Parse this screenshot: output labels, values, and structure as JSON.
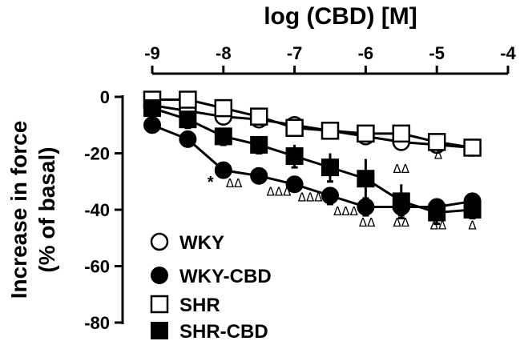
{
  "chart_data": {
    "type": "line",
    "title": "",
    "xlabel": "log (CBD) [M]",
    "ylabel_line1": "Increase in force",
    "ylabel_line2": "(% of basal)",
    "xlim": [
      -9,
      -4
    ],
    "ylim": [
      -80,
      0
    ],
    "x_ticks": [
      -9,
      -8,
      -7,
      -6,
      -5,
      -4
    ],
    "x_tick_labels": [
      "-9",
      "-8",
      "-7",
      "-6",
      "-5",
      "-4"
    ],
    "y_ticks": [
      0,
      -20,
      -40,
      -60,
      -80
    ],
    "y_tick_labels": [
      "0",
      "-20",
      "-40",
      "-60",
      "-80"
    ],
    "x_axis_position": "top",
    "grid": false,
    "legend_position": "bottom-left",
    "x": [
      -9,
      -8.5,
      -8,
      -7.5,
      -7,
      -6.5,
      -6,
      -5.5,
      -5,
      -4.5
    ],
    "series": [
      {
        "name": "WKY",
        "marker": "circle-open",
        "values": [
          -3,
          -5,
          -7,
          -8,
          -10,
          -12,
          -14,
          -16,
          -17,
          -18
        ],
        "errors": [
          0,
          0,
          0,
          0,
          0,
          0,
          0,
          0,
          0,
          0
        ]
      },
      {
        "name": "WKY-CBD",
        "marker": "circle-filled",
        "values": [
          -10,
          -15,
          -26,
          -28,
          -31,
          -35,
          -39,
          -39,
          -39,
          -37
        ],
        "errors": [
          2,
          2,
          2,
          2,
          2,
          3,
          3,
          3,
          3,
          3
        ]
      },
      {
        "name": "SHR",
        "marker": "square-open",
        "values": [
          -1,
          -1,
          -4,
          -7,
          -11,
          -12,
          -13,
          -13,
          -16,
          -18
        ],
        "errors": [
          0,
          0,
          0,
          0,
          0,
          0,
          0,
          0,
          0,
          0
        ]
      },
      {
        "name": "SHR-CBD",
        "marker": "square-filled",
        "values": [
          -4,
          -8,
          -14,
          -17,
          -21,
          -25,
          -29,
          -37,
          -41,
          -40
        ],
        "errors": [
          2,
          3,
          3,
          3,
          4,
          5,
          7,
          6,
          4,
          3
        ]
      }
    ],
    "annotations": [
      {
        "text": "*",
        "x": -8.18,
        "y": -32,
        "kind": "star"
      },
      {
        "text": "ΔΔ",
        "x": -7.85,
        "y": -32,
        "kind": "triangle"
      },
      {
        "text": "ΔΔΔ",
        "x": -7.22,
        "y": -35,
        "kind": "triangle"
      },
      {
        "text": "ΔΔΔ",
        "x": -6.78,
        "y": -37,
        "kind": "triangle"
      },
      {
        "text": "ΔΔΔ",
        "x": -6.28,
        "y": -42,
        "kind": "triangle"
      },
      {
        "text": "ΔΔ",
        "x": -5.98,
        "y": -46,
        "kind": "triangle"
      },
      {
        "text": "ΔΔ",
        "x": -5.5,
        "y": -46,
        "kind": "triangle"
      },
      {
        "text": "ΔΔ",
        "x": -4.98,
        "y": -47,
        "kind": "triangle"
      },
      {
        "text": "Δ",
        "x": -4.5,
        "y": -47,
        "kind": "triangle"
      },
      {
        "text": "ΔΔ",
        "x": -5.5,
        "y": -27,
        "kind": "triangle"
      },
      {
        "text": "Δ",
        "x": -4.98,
        "y": -22,
        "kind": "triangle"
      }
    ]
  }
}
